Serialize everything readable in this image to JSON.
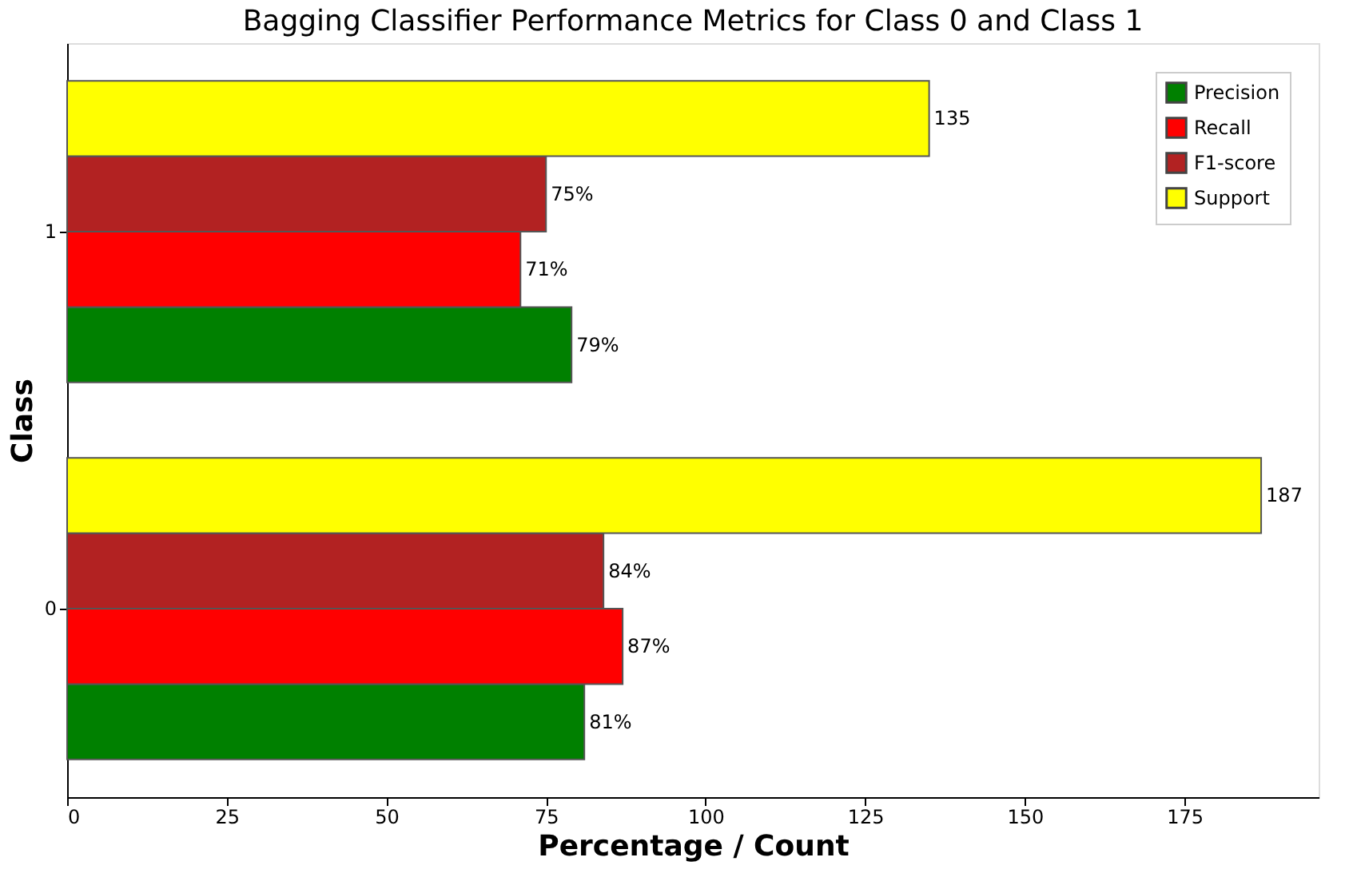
{
  "chart_data": {
    "type": "bar",
    "orientation": "horizontal",
    "title": "Bagging Classifier  Performance Metrics for Class 0 and Class 1",
    "xlabel": "Percentage / Count",
    "ylabel": "Class",
    "categories": [
      "1",
      "0"
    ],
    "series": [
      {
        "name": "Precision",
        "color": "#008000",
        "values": [
          79,
          81
        ],
        "value_labels": [
          "79%",
          "81%"
        ]
      },
      {
        "name": "Recall",
        "color": "#ff0000",
        "values": [
          71,
          87
        ],
        "value_labels": [
          "71%",
          "87%"
        ]
      },
      {
        "name": "F1-score",
        "color": "#b22222",
        "values": [
          75,
          84
        ],
        "value_labels": [
          "75%",
          "84%"
        ]
      },
      {
        "name": "Support",
        "color": "#ffff00",
        "values": [
          135,
          187
        ],
        "value_labels": [
          "135",
          "187"
        ]
      }
    ],
    "xlim": [
      0,
      196
    ],
    "xticks": [
      0,
      25,
      50,
      75,
      100,
      125,
      150,
      175
    ],
    "legend": "top right"
  }
}
